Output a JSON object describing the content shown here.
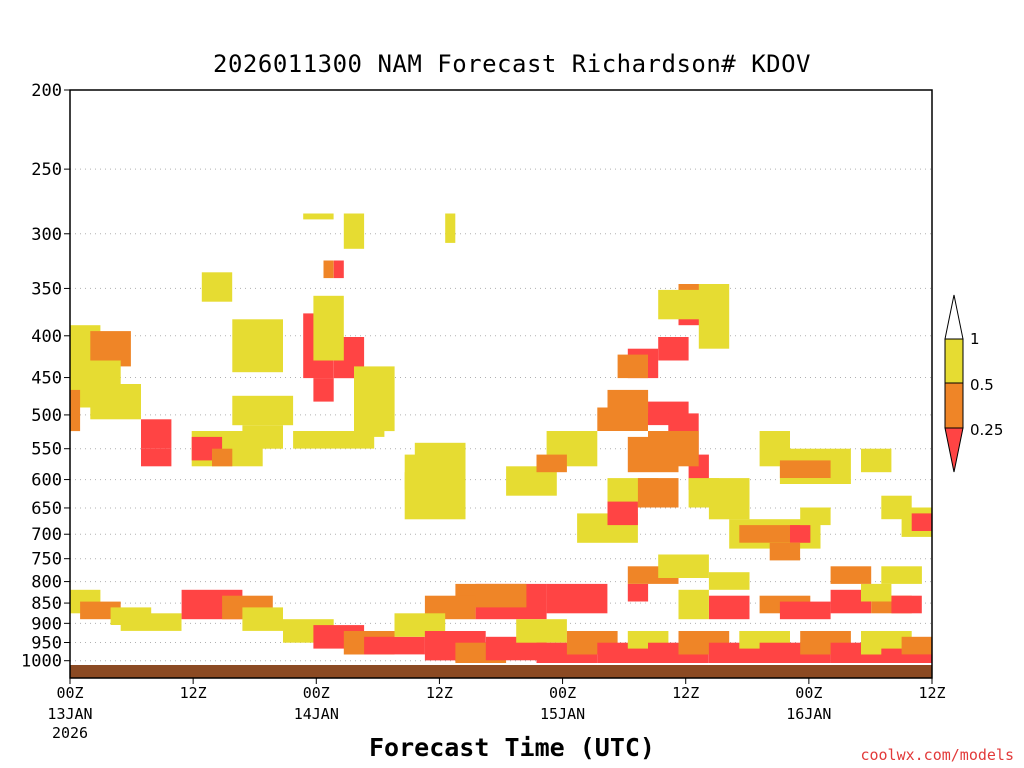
{
  "credit": "coolwx.com/models",
  "colors": {
    "red": "#ff4444",
    "orange": "#ef8527",
    "yellow": "#e6dc32",
    "ground": "#8b4a23",
    "grid": "#b0b0b0"
  },
  "chart_data": {
    "type": "heatmap",
    "title": "2026011300 NAM Forecast Richardson# KDOV",
    "xlabel": "Forecast Time (UTC)",
    "ylabel": "",
    "x_unit": "forecast hour",
    "xlim": [
      0,
      84
    ],
    "y_unit": "hPa (log-pressure axis)",
    "ylim": [
      1050,
      200
    ],
    "y_ticks": [
      200,
      250,
      300,
      350,
      400,
      450,
      500,
      550,
      600,
      650,
      700,
      750,
      800,
      850,
      900,
      950,
      1000
    ],
    "x_ticks": [
      {
        "hour": 0,
        "label": "00Z",
        "date": "13JAN",
        "year": "2026"
      },
      {
        "hour": 12,
        "label": "12Z",
        "date": "",
        "year": ""
      },
      {
        "hour": 24,
        "label": "00Z",
        "date": "14JAN",
        "year": ""
      },
      {
        "hour": 36,
        "label": "12Z",
        "date": "",
        "year": ""
      },
      {
        "hour": 48,
        "label": "00Z",
        "date": "15JAN",
        "year": ""
      },
      {
        "hour": 60,
        "label": "12Z",
        "date": "",
        "year": ""
      },
      {
        "hour": 72,
        "label": "00Z",
        "date": "16JAN",
        "year": ""
      },
      {
        "hour": 84,
        "label": "12Z",
        "date": "",
        "year": ""
      }
    ],
    "legend": {
      "placement": "right",
      "labels": [
        "1",
        "0.5",
        "0.25"
      ],
      "bins": [
        {
          "range": "0.5-1",
          "color": "yellow"
        },
        {
          "range": "0.25-0.5",
          "color": "orange"
        },
        {
          "range": "<0.25",
          "color": "red"
        }
      ]
    },
    "categories": [
      "red",
      "orange",
      "yellow"
    ],
    "cells": [
      [
        "y",
        23,
        21,
        25,
        21,
        2
      ],
      [
        "y",
        26,
        17,
        25,
        21,
        2
      ],
      [
        "y",
        27,
        21,
        28,
        26,
        1
      ],
      [
        "y",
        37,
        21,
        37,
        25,
        1
      ],
      [
        "y",
        13,
        31,
        15,
        35,
        1
      ],
      [
        "r",
        26,
        29,
        26,
        31,
        1
      ],
      [
        "o",
        25,
        29,
        25,
        31,
        1
      ],
      [
        "r",
        23,
        38,
        25,
        48,
        1
      ],
      [
        "r",
        24,
        49,
        25,
        52,
        1
      ],
      [
        "r",
        26,
        42,
        28,
        48,
        1
      ],
      [
        "r",
        28,
        49,
        29,
        53,
        1
      ],
      [
        "y",
        24,
        35,
        26,
        45,
        1
      ],
      [
        "y",
        16,
        39,
        20,
        47,
        1
      ],
      [
        "y",
        28,
        47,
        31,
        57,
        1
      ],
      [
        "y",
        33,
        62,
        38,
        72,
        1
      ],
      [
        "r",
        55,
        44,
        57,
        48,
        1
      ],
      [
        "r",
        56,
        53,
        60,
        56,
        1
      ],
      [
        "r",
        58,
        42,
        60,
        45,
        1
      ],
      [
        "r",
        60,
        36,
        62,
        39,
        1
      ],
      [
        "o",
        60,
        33,
        63,
        35,
        1
      ],
      [
        "o",
        54,
        45,
        56,
        48,
        1
      ],
      [
        "o",
        53,
        51,
        56,
        54,
        1
      ],
      [
        "o",
        52,
        54,
        56,
        57,
        1
      ],
      [
        "y",
        58,
        34,
        62,
        38,
        1
      ],
      [
        "y",
        62,
        33,
        64,
        43,
        1
      ],
      [
        "r",
        59,
        55,
        61,
        61,
        1
      ],
      [
        "r",
        61,
        62,
        62,
        67,
        1
      ],
      [
        "o",
        57,
        58,
        61,
        63,
        1
      ],
      [
        "o",
        55,
        59,
        59,
        64,
        1
      ],
      [
        "y",
        68,
        58,
        70,
        63,
        1
      ],
      [
        "y",
        70,
        61,
        76,
        66,
        1
      ],
      [
        "o",
        70,
        63,
        74,
        65,
        1
      ],
      [
        "y",
        63,
        66,
        66,
        72,
        1
      ],
      [
        "y",
        0,
        40,
        2,
        51,
        1
      ],
      [
        "o",
        2,
        41,
        5,
        46,
        1
      ],
      [
        "y",
        0,
        46,
        4,
        53,
        1
      ],
      [
        "o",
        0,
        51,
        0,
        57,
        1
      ],
      [
        "y",
        2,
        50,
        6,
        55,
        1
      ],
      [
        "r",
        7,
        56,
        9,
        60,
        1
      ],
      [
        "r",
        7,
        61,
        9,
        63,
        1
      ],
      [
        "y",
        12,
        58,
        18,
        63,
        1
      ],
      [
        "r",
        12,
        59,
        14,
        62,
        1
      ],
      [
        "o",
        14,
        61,
        15,
        63,
        1
      ],
      [
        "y",
        16,
        52,
        21,
        56,
        1
      ],
      [
        "y",
        17,
        57,
        20,
        60,
        1
      ],
      [
        "y",
        22,
        58,
        29,
        60,
        1
      ],
      [
        "y",
        28,
        54,
        30,
        58,
        1
      ],
      [
        "y",
        34,
        60,
        38,
        63,
        1
      ],
      [
        "y",
        33,
        65,
        37,
        67,
        1
      ],
      [
        "y",
        43,
        64,
        47,
        68,
        1
      ],
      [
        "y",
        47,
        58,
        51,
        63,
        1
      ],
      [
        "o",
        46,
        62,
        48,
        64,
        1
      ],
      [
        "y",
        50,
        72,
        55,
        76,
        1
      ],
      [
        "y",
        53,
        66,
        57,
        70,
        1
      ],
      [
        "r",
        53,
        70,
        55,
        73,
        1
      ],
      [
        "o",
        56,
        66,
        59,
        70,
        1
      ],
      [
        "y",
        61,
        66,
        63,
        70,
        1
      ],
      [
        "y",
        65,
        73,
        73,
        77,
        1
      ],
      [
        "o",
        66,
        74,
        72,
        76,
        1
      ],
      [
        "r",
        71,
        74,
        72,
        76,
        1
      ],
      [
        "y",
        72,
        71,
        74,
        73,
        1
      ],
      [
        "o",
        69,
        77,
        71,
        79,
        1
      ],
      [
        "y",
        80,
        69,
        82,
        72,
        1
      ],
      [
        "y",
        82,
        71,
        84,
        75,
        1
      ],
      [
        "r",
        83,
        72,
        84,
        74,
        1
      ],
      [
        "y",
        78,
        61,
        80,
        64,
        1
      ],
      [
        "r",
        40,
        84,
        46,
        89,
        1
      ],
      [
        "o",
        38,
        84,
        44,
        87,
        1
      ],
      [
        "r",
        47,
        84,
        52,
        88,
        1
      ],
      [
        "o",
        35,
        86,
        39,
        89,
        1
      ],
      [
        "r",
        55,
        84,
        56,
        86,
        1
      ],
      [
        "r",
        63,
        86,
        66,
        89,
        1
      ],
      [
        "y",
        60,
        85,
        62,
        89,
        1
      ],
      [
        "o",
        68,
        86,
        72,
        88,
        1
      ],
      [
        "r",
        70,
        87,
        74,
        89,
        1
      ],
      [
        "r",
        75,
        85,
        78,
        88,
        1
      ],
      [
        "o",
        79,
        86,
        82,
        88,
        1
      ],
      [
        "r",
        81,
        86,
        83,
        88,
        1
      ],
      [
        "y",
        78,
        84,
        80,
        86,
        1
      ],
      [
        "y",
        0,
        85,
        2,
        88,
        1
      ],
      [
        "o",
        1,
        87,
        4,
        89,
        1
      ],
      [
        "y",
        4,
        88,
        7,
        90,
        1
      ],
      [
        "r",
        11,
        85,
        16,
        89,
        1
      ],
      [
        "o",
        15,
        86,
        19,
        89,
        1
      ],
      [
        "y",
        17,
        88,
        20,
        91,
        1
      ],
      [
        "y",
        5,
        89,
        10,
        91,
        1
      ],
      [
        "y",
        21,
        90,
        25,
        93,
        1
      ],
      [
        "r",
        24,
        91,
        28,
        94,
        1
      ],
      [
        "o",
        27,
        92,
        31,
        95,
        1
      ],
      [
        "r",
        29,
        93,
        34,
        95,
        1
      ],
      [
        "y",
        32,
        89,
        36,
        92,
        1
      ],
      [
        "r",
        35,
        92,
        40,
        96,
        1
      ],
      [
        "o",
        38,
        94,
        42,
        97,
        1
      ],
      [
        "r",
        41,
        93,
        46,
        96,
        1
      ],
      [
        "y",
        44,
        90,
        48,
        93,
        1
      ],
      [
        "r",
        46,
        94,
        51,
        97,
        1
      ],
      [
        "o",
        49,
        92,
        53,
        95,
        1
      ],
      [
        "r",
        52,
        94,
        56,
        97,
        1
      ],
      [
        "y",
        55,
        92,
        58,
        94,
        1
      ],
      [
        "r",
        57,
        94,
        62,
        97,
        1
      ],
      [
        "o",
        60,
        92,
        64,
        95,
        1
      ],
      [
        "r",
        63,
        94,
        68,
        97,
        1
      ],
      [
        "y",
        66,
        92,
        70,
        94,
        1
      ],
      [
        "r",
        68,
        94,
        74,
        97,
        1
      ],
      [
        "o",
        72,
        92,
        76,
        95,
        1
      ],
      [
        "r",
        75,
        94,
        80,
        97,
        1
      ],
      [
        "y",
        78,
        92,
        82,
        95,
        1
      ],
      [
        "r",
        80,
        95,
        84,
        97,
        1
      ],
      [
        "o",
        82,
        93,
        84,
        95,
        1
      ],
      [
        "o",
        55,
        81,
        59,
        83,
        1
      ],
      [
        "y",
        58,
        79,
        62,
        82,
        1
      ],
      [
        "y",
        63,
        82,
        66,
        84,
        1
      ],
      [
        "o",
        75,
        81,
        78,
        83,
        1
      ],
      [
        "y",
        80,
        81,
        83,
        83,
        1
      ]
    ]
  }
}
